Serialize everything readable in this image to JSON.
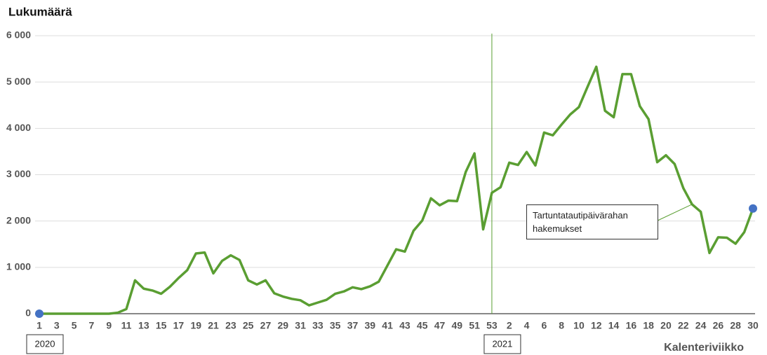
{
  "chart_data": {
    "type": "line",
    "y_axis_title": "Lukumäärä",
    "x_axis_title": "Kalenteriviikko",
    "categories": [
      "1",
      null,
      "3",
      null,
      "5",
      null,
      "7",
      null,
      "9",
      null,
      "11",
      null,
      "13",
      null,
      "15",
      null,
      "17",
      null,
      "19",
      null,
      "21",
      null,
      "23",
      null,
      "25",
      null,
      "27",
      null,
      "29",
      null,
      "31",
      null,
      "33",
      null,
      "35",
      null,
      "37",
      null,
      "39",
      null,
      "41",
      null,
      "43",
      null,
      "45",
      null,
      "47",
      null,
      "49",
      null,
      "51",
      null,
      "53",
      null,
      "2",
      null,
      "4",
      null,
      "6",
      null,
      "8",
      null,
      "10",
      null,
      "12",
      null,
      "14",
      null,
      "16",
      null,
      "18",
      null,
      "20",
      null,
      "22",
      null,
      "24",
      null,
      "26",
      null,
      "28",
      null,
      "30"
    ],
    "periods": [
      {
        "label": "2020",
        "start_index": 0
      },
      {
        "label": "2021",
        "start_index": 53
      }
    ],
    "series": [
      {
        "name": "Tartuntatautipäivärahan hakemukset",
        "color": "#5a9e32",
        "marker_color": "#4472c4",
        "label_point": 75,
        "values": [
          0,
          0,
          0,
          0,
          0,
          0,
          0,
          0,
          0,
          20,
          100,
          720,
          540,
          500,
          430,
          580,
          770,
          940,
          1300,
          1320,
          870,
          1140,
          1260,
          1160,
          720,
          630,
          720,
          440,
          370,
          320,
          290,
          180,
          240,
          300,
          430,
          480,
          570,
          530,
          590,
          690,
          1040,
          1390,
          1340,
          1790,
          2010,
          2490,
          2340,
          2440,
          2430,
          3060,
          3460,
          1820,
          2610,
          2730,
          3260,
          3210,
          3490,
          3200,
          3910,
          3850,
          4080,
          4300,
          4460,
          4900,
          5330,
          4380,
          4240,
          5170,
          5170,
          4480,
          4200,
          3270,
          3420,
          3230,
          2710,
          2360,
          2200,
          1310,
          1650,
          1640,
          1510,
          1760,
          2270
        ]
      }
    ],
    "ylim": [
      0,
      6000
    ],
    "yticks": [
      0,
      {
        "value": 1000,
        "label": "1 000"
      },
      {
        "value": 2000,
        "label": "2 000"
      },
      {
        "value": 3000,
        "label": "3 000"
      },
      {
        "value": 4000,
        "label": "4 000"
      },
      {
        "value": 5000,
        "label": "5 000"
      },
      {
        "value": 6000,
        "label": "6 000"
      }
    ],
    "grid": true
  }
}
